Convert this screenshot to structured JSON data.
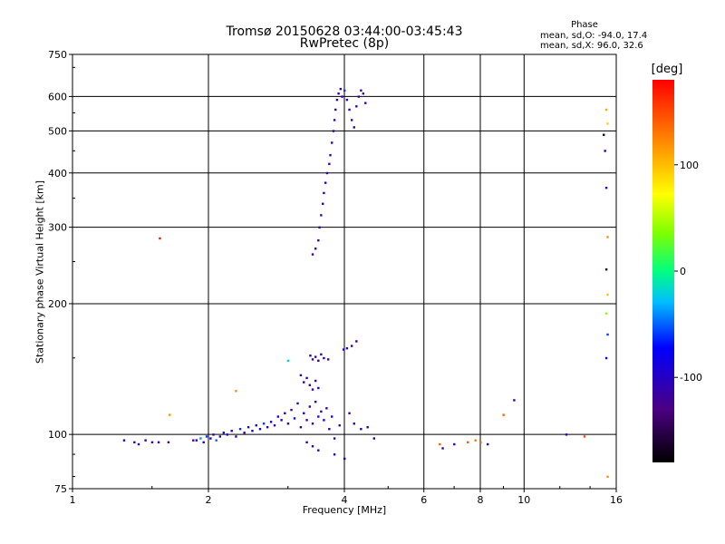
{
  "chart_data": {
    "type": "scatter",
    "title": "Tromsø 20150628 03:44:00-03:45:43",
    "subtitle": "RwPretec (8p)",
    "xlabel": "Frequency [MHz]",
    "ylabel": "Stationary phase Virtual Height [km]",
    "x_scale": "log",
    "y_scale": "log",
    "xlim": [
      1,
      16
    ],
    "ylim": [
      75,
      750
    ],
    "x_ticks": [
      1,
      2,
      4,
      6,
      8,
      10,
      16
    ],
    "x_tick_labels": [
      "1",
      "2",
      "4",
      "6",
      "8",
      "10",
      "16"
    ],
    "y_ticks": [
      75,
      100,
      200,
      300,
      400,
      500,
      600,
      750
    ],
    "y_tick_labels": [
      "75",
      "100",
      "200",
      "300",
      "400",
      "500",
      "600",
      "750"
    ],
    "grid": true,
    "stats": {
      "heading": "Phase",
      "o_line": "mean, sd,O: -94.0, 17.4",
      "x_line": "mean, sd,X: 96.0, 32.6"
    },
    "colorbar": {
      "unit": "[deg]",
      "tick_values": [
        100,
        0,
        -100
      ],
      "tick_labels": [
        "100",
        "0",
        "-100"
      ],
      "range": [
        -180,
        180
      ]
    },
    "series": [
      {
        "points": [
          [
            1.3,
            97,
            -100
          ],
          [
            1.37,
            96,
            -110
          ],
          [
            1.4,
            95,
            -105
          ],
          [
            1.45,
            97,
            -110
          ],
          [
            1.5,
            96,
            -100
          ],
          [
            1.55,
            96,
            -108
          ],
          [
            1.63,
            96,
            -112
          ],
          [
            1.56,
            283,
            170
          ],
          [
            1.64,
            111,
            120
          ],
          [
            1.85,
            97,
            -120
          ],
          [
            2.3,
            126,
            120
          ],
          [
            3.0,
            148,
            -20
          ],
          [
            1.88,
            97,
            -110
          ],
          [
            1.92,
            98,
            -40
          ],
          [
            1.95,
            96,
            -110
          ],
          [
            1.98,
            99,
            -60
          ],
          [
            2.02,
            98,
            -100
          ],
          [
            2.05,
            100,
            -110
          ],
          [
            2.08,
            97,
            -50
          ],
          [
            2.12,
            99,
            -110
          ],
          [
            2.16,
            101,
            -100
          ],
          [
            2.2,
            100,
            -70
          ],
          [
            2.25,
            102,
            -110
          ],
          [
            2.3,
            99,
            -105
          ],
          [
            2.35,
            103,
            -60
          ],
          [
            2.4,
            101,
            -110
          ],
          [
            2.45,
            104,
            -100
          ],
          [
            2.5,
            102,
            -70
          ],
          [
            2.55,
            105,
            -112
          ],
          [
            2.6,
            103,
            -100
          ],
          [
            2.65,
            106,
            -60
          ],
          [
            2.7,
            104,
            -110
          ],
          [
            2.75,
            107,
            -100
          ],
          [
            2.8,
            105,
            -115
          ],
          [
            2.85,
            110,
            -70
          ],
          [
            2.9,
            108,
            -105
          ],
          [
            2.95,
            112,
            -110
          ],
          [
            3.0,
            106,
            -100
          ],
          [
            3.05,
            114,
            -115
          ],
          [
            3.1,
            109,
            -70
          ],
          [
            3.15,
            118,
            -108
          ],
          [
            3.2,
            104,
            -112
          ],
          [
            3.25,
            112,
            -100
          ],
          [
            3.3,
            108,
            -115
          ],
          [
            3.35,
            116,
            -110
          ],
          [
            3.4,
            106,
            -105
          ],
          [
            3.45,
            119,
            -112
          ],
          [
            3.5,
            110,
            -100
          ],
          [
            3.55,
            113,
            -115
          ],
          [
            3.6,
            108,
            -80
          ],
          [
            3.65,
            115,
            -110
          ],
          [
            3.7,
            103,
            -112
          ],
          [
            3.75,
            110,
            -105
          ],
          [
            3.8,
            98,
            -115
          ],
          [
            3.9,
            105,
            -110
          ],
          [
            3.36,
            152,
            -110
          ],
          [
            3.4,
            149,
            -115
          ],
          [
            3.45,
            151,
            -108
          ],
          [
            3.5,
            148,
            -110
          ],
          [
            3.55,
            153,
            -112
          ],
          [
            3.6,
            150,
            -100
          ],
          [
            3.68,
            149,
            -115
          ],
          [
            3.2,
            137,
            -110
          ],
          [
            3.25,
            132,
            -115
          ],
          [
            3.3,
            135,
            -108
          ],
          [
            3.35,
            130,
            -112
          ],
          [
            3.4,
            127,
            -110
          ],
          [
            3.45,
            133,
            -115
          ],
          [
            3.5,
            128,
            -100
          ],
          [
            3.3,
            96,
            -110
          ],
          [
            3.4,
            94,
            -115
          ],
          [
            3.5,
            92,
            -112
          ],
          [
            3.8,
            90,
            -100
          ],
          [
            4.0,
            88,
            -80
          ],
          [
            3.98,
            157,
            -100
          ],
          [
            4.05,
            158,
            -110
          ],
          [
            4.15,
            160,
            -110
          ],
          [
            4.25,
            164,
            -112
          ],
          [
            4.1,
            112,
            -110
          ],
          [
            4.2,
            106,
            -112
          ],
          [
            4.35,
            103,
            -108
          ],
          [
            4.5,
            104,
            -110
          ],
          [
            4.65,
            98,
            -100
          ],
          [
            3.4,
            260,
            -120
          ],
          [
            3.45,
            268,
            -110
          ],
          [
            3.5,
            280,
            -115
          ],
          [
            3.52,
            300,
            -110
          ],
          [
            3.55,
            320,
            -112
          ],
          [
            3.58,
            340,
            -108
          ],
          [
            3.6,
            360,
            -115
          ],
          [
            3.63,
            380,
            -110
          ],
          [
            3.66,
            400,
            -112
          ],
          [
            3.7,
            420,
            -108
          ],
          [
            3.72,
            440,
            -110
          ],
          [
            3.75,
            470,
            -115
          ],
          [
            3.78,
            500,
            -110
          ],
          [
            3.8,
            530,
            -112
          ],
          [
            3.82,
            560,
            -108
          ],
          [
            3.85,
            590,
            -110
          ],
          [
            3.88,
            610,
            -112
          ],
          [
            3.92,
            625,
            -105
          ],
          [
            3.95,
            600,
            -110
          ],
          [
            4.0,
            620,
            -60
          ],
          [
            4.05,
            590,
            -108
          ],
          [
            4.1,
            560,
            -112
          ],
          [
            4.15,
            530,
            -110
          ],
          [
            4.2,
            510,
            -108
          ],
          [
            4.25,
            570,
            -112
          ],
          [
            4.3,
            600,
            -110
          ],
          [
            4.35,
            620,
            -108
          ],
          [
            4.4,
            610,
            -112
          ],
          [
            4.45,
            580,
            -110
          ],
          [
            6.5,
            95,
            140
          ],
          [
            6.6,
            93,
            -110
          ],
          [
            7.0,
            95,
            -100
          ],
          [
            7.5,
            96,
            140
          ],
          [
            7.8,
            97,
            130
          ],
          [
            8.0,
            96,
            140
          ],
          [
            8.3,
            95,
            -100
          ],
          [
            9.0,
            111,
            140
          ],
          [
            9.5,
            120,
            -110
          ],
          [
            12.4,
            100,
            -110
          ],
          [
            13.6,
            99,
            150
          ],
          [
            15.2,
            560,
            110
          ],
          [
            15.3,
            520,
            90
          ],
          [
            15.0,
            490,
            -160
          ],
          [
            15.1,
            450,
            -100
          ],
          [
            15.2,
            370,
            -110
          ],
          [
            15.3,
            285,
            120
          ],
          [
            15.2,
            240,
            -170
          ],
          [
            15.3,
            210,
            100
          ],
          [
            15.2,
            190,
            40
          ],
          [
            15.3,
            170,
            -60
          ],
          [
            15.2,
            150,
            -90
          ],
          [
            15.3,
            80,
            120
          ]
        ]
      }
    ]
  }
}
